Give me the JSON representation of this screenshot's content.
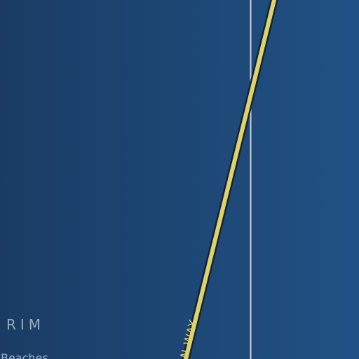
{
  "map": {
    "colors": {
      "water_dark": "#1a3c64",
      "water_light": "#205184",
      "road_fill": "#dcd46a",
      "road_casing": "#142235",
      "boundary_line": "#c9d1dc"
    },
    "labels": {
      "region": "RIM",
      "road": "N WAY",
      "place": "Beaches"
    }
  }
}
